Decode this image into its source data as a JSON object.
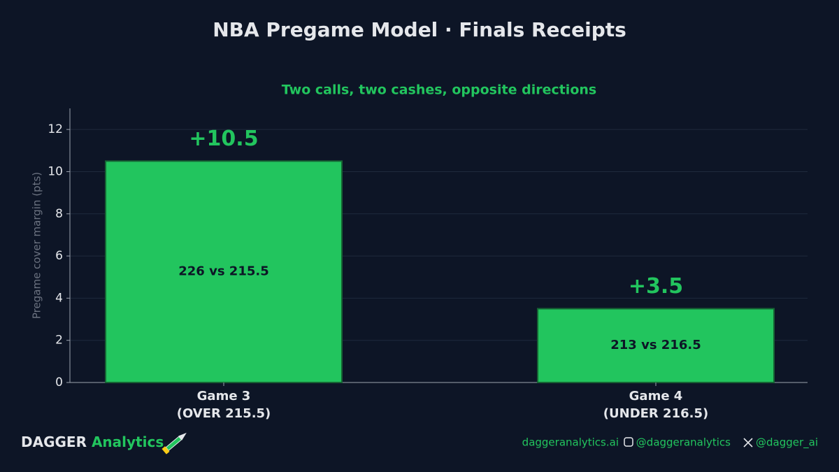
{
  "chart_data": {
    "type": "bar",
    "title": "NBA Pregame Model · Finals Receipts",
    "subtitle": "Two calls, two cashes, opposite directions",
    "y_label": "Pregame cover margin (pts)",
    "categories": [
      "Game 3\n(OVER 215.5)",
      "Game 4\n(UNDER 216.5)"
    ],
    "values": [
      10.5,
      3.5
    ],
    "value_labels": [
      "+10.5",
      "+3.5"
    ],
    "bar_annotations": [
      "226 vs 215.5",
      "213 vs 216.5"
    ],
    "color": "#22c55e",
    "ylim": [
      0,
      13
    ],
    "yticks": [
      0,
      2,
      4,
      6,
      8,
      10,
      12
    ],
    "grid": true
  },
  "footer": {
    "brand": "DAGGER",
    "brand_accent": "Analytics",
    "links": [
      "daggeranalytics.ai",
      "@daggeranalytics",
      "@dagger_ai"
    ]
  }
}
